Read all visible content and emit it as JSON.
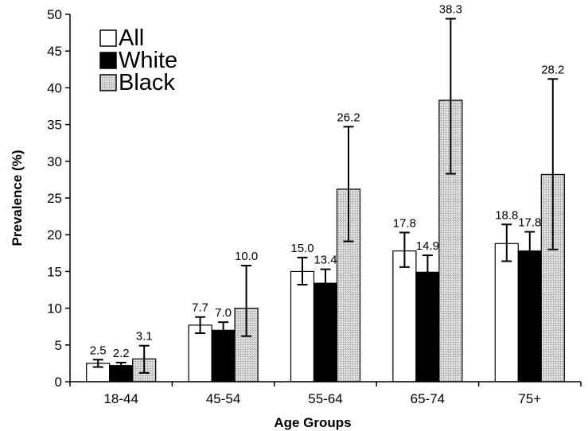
{
  "chart_data": {
    "type": "bar",
    "title": "",
    "xlabel": "Age Groups",
    "ylabel": "Prevalence (%)",
    "ylim": [
      0,
      50
    ],
    "y_ticks": [
      0,
      5,
      10,
      15,
      20,
      25,
      30,
      35,
      40,
      45,
      50
    ],
    "grid": false,
    "legend_position": "top-left",
    "categories": [
      "18-44",
      "45-54",
      "55-64",
      "65-74",
      "75+"
    ],
    "series": [
      {
        "name": "All",
        "fill": "#ffffff",
        "pattern": "solid",
        "values": [
          2.5,
          7.7,
          15.0,
          17.8,
          18.8
        ],
        "labels": [
          "2.5",
          "7.7",
          "15.0",
          "17.8",
          "18.8"
        ],
        "error_low": [
          2.0,
          6.6,
          13.2,
          15.6,
          16.4
        ],
        "error_high": [
          3.0,
          8.8,
          16.9,
          20.3,
          21.4
        ]
      },
      {
        "name": "White",
        "fill": "#000000",
        "pattern": "solid",
        "values": [
          2.2,
          7.0,
          13.4,
          14.9,
          17.8
        ],
        "labels": [
          "2.2",
          "7.0",
          "13.4",
          "14.9",
          "17.8"
        ],
        "error_low": [
          1.8,
          5.9,
          11.7,
          12.6,
          15.4
        ],
        "error_high": [
          2.6,
          8.1,
          15.3,
          17.2,
          20.4
        ]
      },
      {
        "name": "Black",
        "fill": "#c8c8c8",
        "pattern": "stippled",
        "values": [
          3.1,
          10.0,
          26.2,
          38.3,
          28.2
        ],
        "labels": [
          "3.1",
          "10.0",
          "26.2",
          "38.3",
          "28.2"
        ],
        "error_low": [
          1.2,
          6.2,
          19.1,
          28.3,
          18.0
        ],
        "error_high": [
          4.9,
          15.8,
          34.7,
          49.4,
          41.2
        ]
      }
    ]
  }
}
